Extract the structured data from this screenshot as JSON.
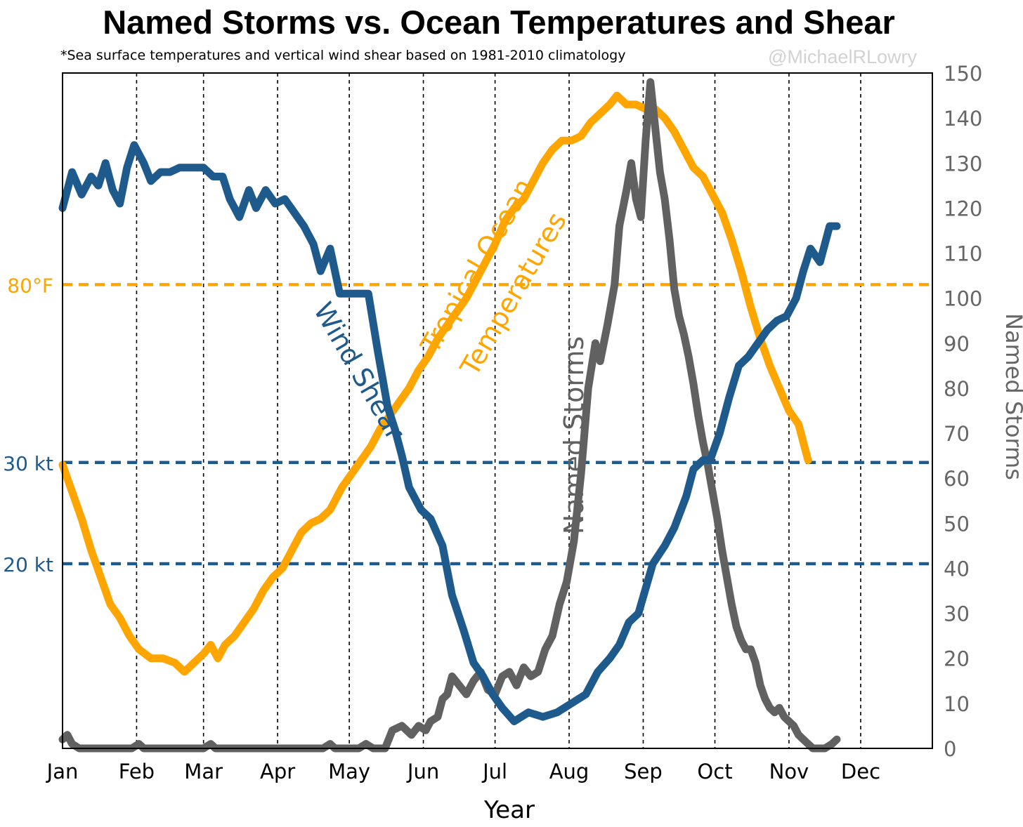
{
  "title": "Named Storms vs. Ocean Temperatures and Shear",
  "subtitle": "*Sea surface temperatures and vertical wind shear based on 1981-2010 climatology",
  "watermark": "@MichaelRLowry",
  "colors": {
    "wind_shear": "#1f5a8c",
    "ocean_temp": "#ffa500",
    "named_storms": "#616161",
    "axis_text": "#666666"
  },
  "chart_data": {
    "type": "line",
    "title": "Named Storms vs. Ocean Temperatures and Shear",
    "xlabel": "Year",
    "ylabel_right": "Named Storms",
    "x_ticks": [
      "Jan",
      "Feb",
      "Mar",
      "Apr",
      "May",
      "Jun",
      "Jul",
      "Aug",
      "Sep",
      "Oct",
      "Nov",
      "Dec"
    ],
    "x_tick_days": [
      1,
      32,
      60,
      91,
      121,
      152,
      182,
      213,
      244,
      274,
      305,
      335
    ],
    "x_range": [
      1,
      365
    ],
    "y_right_range": [
      0,
      150
    ],
    "y_right_ticks": [
      0,
      10,
      20,
      30,
      40,
      50,
      60,
      70,
      80,
      90,
      100,
      110,
      120,
      130,
      140,
      150
    ],
    "x_grid": "dashed vertical lines at month starts",
    "reference_lines": [
      {
        "label": "80°F",
        "series": "Tropical Ocean Temperatures",
        "value_on_right_axis": 103
      },
      {
        "label": "30 kt",
        "series": "Wind Shear",
        "value_on_right_axis": 63.5
      },
      {
        "label": "20 kt",
        "series": "Wind Shear",
        "value_on_right_axis": 41
      }
    ],
    "series_labels": [
      {
        "name": "Wind Shear",
        "series": "Wind Shear"
      },
      {
        "name": "Tropical Ocean Temperatures",
        "series": "Tropical Ocean Temperatures"
      },
      {
        "name": "Named Storms",
        "series": "Named Storms"
      }
    ],
    "series": [
      {
        "name": "Wind Shear",
        "note_units": "plotted against right-axis scale",
        "points": [
          [
            1,
            120
          ],
          [
            5,
            128
          ],
          [
            9,
            123
          ],
          [
            13,
            127
          ],
          [
            16,
            125
          ],
          [
            19,
            130
          ],
          [
            22,
            124
          ],
          [
            25,
            121
          ],
          [
            28,
            129
          ],
          [
            31,
            134
          ],
          [
            35,
            130
          ],
          [
            38,
            126
          ],
          [
            42,
            128
          ],
          [
            46,
            128
          ],
          [
            50,
            129
          ],
          [
            55,
            129
          ],
          [
            60,
            129
          ],
          [
            64,
            127
          ],
          [
            68,
            127
          ],
          [
            71,
            122
          ],
          [
            75,
            118
          ],
          [
            79,
            124
          ],
          [
            82,
            120
          ],
          [
            86,
            124
          ],
          [
            90,
            121
          ],
          [
            94,
            122
          ],
          [
            98,
            119
          ],
          [
            102,
            116
          ],
          [
            106,
            112
          ],
          [
            109,
            106
          ],
          [
            113,
            111
          ],
          [
            117,
            101
          ],
          [
            120,
            101
          ],
          [
            124,
            101
          ],
          [
            129,
            101
          ],
          [
            133,
            88
          ],
          [
            137,
            76
          ],
          [
            140,
            71
          ],
          [
            143,
            65
          ],
          [
            146,
            58
          ],
          [
            151,
            53
          ],
          [
            155,
            51
          ],
          [
            160,
            45
          ],
          [
            164,
            34
          ],
          [
            169,
            26
          ],
          [
            173,
            19
          ],
          [
            177,
            16
          ],
          [
            181,
            12
          ],
          [
            185,
            9
          ],
          [
            190,
            6
          ],
          [
            196,
            8
          ],
          [
            202,
            7
          ],
          [
            208,
            8
          ],
          [
            214,
            10
          ],
          [
            220,
            12
          ],
          [
            225,
            17
          ],
          [
            230,
            20
          ],
          [
            234,
            23
          ],
          [
            238,
            28
          ],
          [
            242,
            30
          ],
          [
            248,
            41
          ],
          [
            253,
            45
          ],
          [
            257,
            49
          ],
          [
            262,
            56
          ],
          [
            265,
            62
          ],
          [
            269,
            64
          ],
          [
            272,
            64
          ],
          [
            276,
            70
          ],
          [
            280,
            78
          ],
          [
            284,
            85
          ],
          [
            288,
            87
          ],
          [
            292,
            90
          ],
          [
            296,
            93
          ],
          [
            300,
            95
          ],
          [
            304,
            96
          ],
          [
            308,
            100
          ],
          [
            311,
            106
          ],
          [
            314,
            111
          ],
          [
            318,
            108
          ],
          [
            322,
            116
          ],
          [
            325,
            116
          ]
        ]
      },
      {
        "name": "Tropical Ocean Temperatures",
        "note_units": "plotted against right-axis scale",
        "points": [
          [
            1,
            63
          ],
          [
            5,
            57
          ],
          [
            9,
            51
          ],
          [
            13,
            44
          ],
          [
            17,
            38
          ],
          [
            21,
            32
          ],
          [
            25,
            29
          ],
          [
            29,
            25
          ],
          [
            33,
            22
          ],
          [
            38,
            20
          ],
          [
            43,
            20
          ],
          [
            48,
            19
          ],
          [
            52,
            17
          ],
          [
            56,
            19
          ],
          [
            60,
            21
          ],
          [
            63,
            23
          ],
          [
            66,
            20
          ],
          [
            69,
            23
          ],
          [
            73,
            25
          ],
          [
            77,
            28
          ],
          [
            81,
            31
          ],
          [
            85,
            35
          ],
          [
            89,
            38
          ],
          [
            93,
            40
          ],
          [
            97,
            44
          ],
          [
            101,
            48
          ],
          [
            105,
            50
          ],
          [
            109,
            51
          ],
          [
            113,
            53
          ],
          [
            118,
            58
          ],
          [
            122,
            61
          ],
          [
            126,
            64
          ],
          [
            130,
            67
          ],
          [
            134,
            71
          ],
          [
            138,
            74
          ],
          [
            142,
            77
          ],
          [
            146,
            80
          ],
          [
            150,
            84
          ],
          [
            154,
            87
          ],
          [
            158,
            91
          ],
          [
            162,
            94
          ],
          [
            166,
            97
          ],
          [
            170,
            100
          ],
          [
            174,
            104
          ],
          [
            178,
            108
          ],
          [
            182,
            112
          ],
          [
            186,
            117
          ],
          [
            190,
            120
          ],
          [
            194,
            122
          ],
          [
            198,
            126
          ],
          [
            202,
            130
          ],
          [
            206,
            133
          ],
          [
            210,
            135
          ],
          [
            214,
            135
          ],
          [
            218,
            136
          ],
          [
            222,
            139
          ],
          [
            226,
            141
          ],
          [
            230,
            143
          ],
          [
            233,
            145
          ],
          [
            237,
            143
          ],
          [
            241,
            143
          ],
          [
            245,
            142
          ],
          [
            249,
            142
          ],
          [
            253,
            140
          ],
          [
            257,
            137
          ],
          [
            261,
            133
          ],
          [
            265,
            129
          ],
          [
            269,
            127
          ],
          [
            273,
            123
          ],
          [
            277,
            119
          ],
          [
            281,
            113
          ],
          [
            285,
            106
          ],
          [
            289,
            98
          ],
          [
            293,
            91
          ],
          [
            297,
            85
          ],
          [
            301,
            80
          ],
          [
            305,
            75
          ],
          [
            309,
            72
          ],
          [
            312,
            66
          ],
          [
            313,
            64
          ]
        ]
      },
      {
        "name": "Named Storms",
        "note_units": "count on right axis",
        "points": [
          [
            1,
            2
          ],
          [
            3,
            3
          ],
          [
            5,
            1
          ],
          [
            8,
            0
          ],
          [
            30,
            0
          ],
          [
            33,
            1
          ],
          [
            35,
            0
          ],
          [
            60,
            0
          ],
          [
            63,
            1
          ],
          [
            65,
            0
          ],
          [
            110,
            0
          ],
          [
            113,
            1
          ],
          [
            115,
            0
          ],
          [
            125,
            0
          ],
          [
            128,
            1
          ],
          [
            131,
            0
          ],
          [
            136,
            0
          ],
          [
            139,
            4
          ],
          [
            143,
            5
          ],
          [
            147,
            3
          ],
          [
            150,
            5
          ],
          [
            153,
            4
          ],
          [
            155,
            6
          ],
          [
            158,
            7
          ],
          [
            160,
            11
          ],
          [
            162,
            12
          ],
          [
            164,
            16
          ],
          [
            167,
            14
          ],
          [
            170,
            12
          ],
          [
            173,
            15
          ],
          [
            176,
            17
          ],
          [
            179,
            13
          ],
          [
            182,
            12
          ],
          [
            185,
            16
          ],
          [
            188,
            17
          ],
          [
            191,
            14
          ],
          [
            194,
            18
          ],
          [
            197,
            16
          ],
          [
            200,
            17
          ],
          [
            203,
            22
          ],
          [
            206,
            25
          ],
          [
            209,
            32
          ],
          [
            212,
            37
          ],
          [
            215,
            46
          ],
          [
            218,
            61
          ],
          [
            221,
            80
          ],
          [
            224,
            90
          ],
          [
            226,
            86
          ],
          [
            229,
            94
          ],
          [
            232,
            103
          ],
          [
            234,
            116
          ],
          [
            237,
            124
          ],
          [
            239,
            130
          ],
          [
            241,
            122
          ],
          [
            243,
            118
          ],
          [
            245,
            135
          ],
          [
            247,
            148
          ],
          [
            249,
            138
          ],
          [
            251,
            128
          ],
          [
            253,
            122
          ],
          [
            255,
            113
          ],
          [
            257,
            102
          ],
          [
            259,
            96
          ],
          [
            261,
            92
          ],
          [
            263,
            87
          ],
          [
            265,
            81
          ],
          [
            267,
            74
          ],
          [
            269,
            68
          ],
          [
            271,
            63
          ],
          [
            273,
            57
          ],
          [
            275,
            51
          ],
          [
            277,
            44
          ],
          [
            279,
            38
          ],
          [
            281,
            32
          ],
          [
            283,
            27
          ],
          [
            285,
            24
          ],
          [
            287,
            22
          ],
          [
            289,
            22
          ],
          [
            291,
            19
          ],
          [
            293,
            14
          ],
          [
            295,
            11
          ],
          [
            297,
            9
          ],
          [
            299,
            8
          ],
          [
            301,
            9
          ],
          [
            303,
            7
          ],
          [
            305,
            6
          ],
          [
            307,
            5
          ],
          [
            309,
            3
          ],
          [
            311,
            2
          ],
          [
            313,
            1
          ],
          [
            315,
            0
          ],
          [
            320,
            0
          ],
          [
            323,
            1
          ],
          [
            325,
            2
          ]
        ]
      }
    ]
  }
}
